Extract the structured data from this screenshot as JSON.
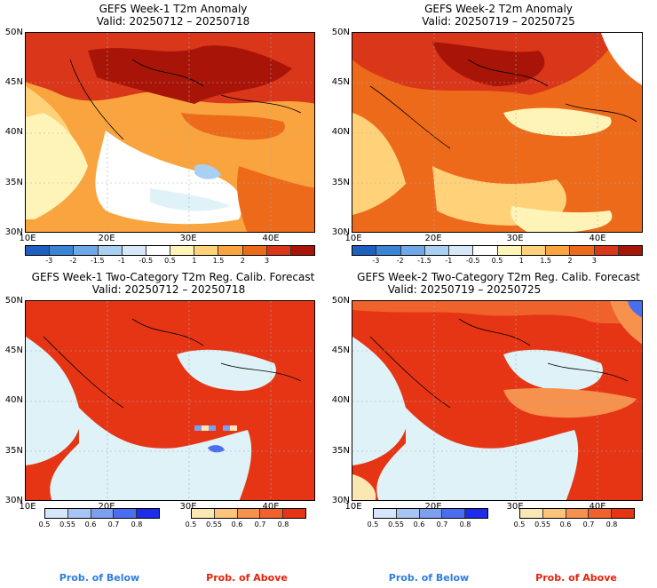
{
  "panels": [
    {
      "title": "GEFS Week-1 T2m Anomaly",
      "valid": "Valid: 20250712 – 20250718"
    },
    {
      "title": "GEFS Week-2 T2m Anomaly",
      "valid": "Valid: 20250719 – 20250725"
    },
    {
      "title": "GEFS Week-1 Two-Category T2m Reg. Calib. Forecast",
      "valid": "Valid: 20250712 – 20250718"
    },
    {
      "title": "GEFS Week-2 Two-Category T2m Reg. Calib. Forecast",
      "valid": "Valid: 20250719 – 20250725"
    }
  ],
  "lat_labels": [
    "50N",
    "45N",
    "40N",
    "35N",
    "30N"
  ],
  "lon_labels": [
    "10E",
    "20E",
    "30E",
    "40E"
  ],
  "anomaly_colorbar": {
    "ticks": [
      "-3",
      "-2",
      "-1.5",
      "-1",
      "-0.5",
      "0.5",
      "1",
      "1.5",
      "2",
      "3"
    ],
    "colors": [
      "#1f5fbf",
      "#3a84d6",
      "#6fa8e6",
      "#a9cff2",
      "#d7e9f8",
      "#ffffff",
      "#fff4b8",
      "#ffd27a",
      "#f9a43e",
      "#ed6a1a",
      "#d9361a",
      "#a81508"
    ]
  },
  "prob_colorbars": {
    "below": {
      "ticks": [
        "0.5",
        "0.55",
        "0.6",
        "0.7",
        "0.8"
      ],
      "colors": [
        "#d6e6fb",
        "#a7c5f4",
        "#7d9ff0",
        "#4a6ef0",
        "#1c2ce8"
      ]
    },
    "above": {
      "ticks": [
        "0.5",
        "0.55",
        "0.6",
        "0.7",
        "0.8"
      ],
      "colors": [
        "#fbe7b2",
        "#fbc47a",
        "#f6914e",
        "#f0622c",
        "#e63515"
      ]
    }
  },
  "prob_labels": {
    "below": "Prob. of Below",
    "above": "Prob. of Above"
  },
  "colors": {
    "below_label": "#2f7de0",
    "above_label": "#e8200a",
    "sea": "#dff2f7"
  }
}
